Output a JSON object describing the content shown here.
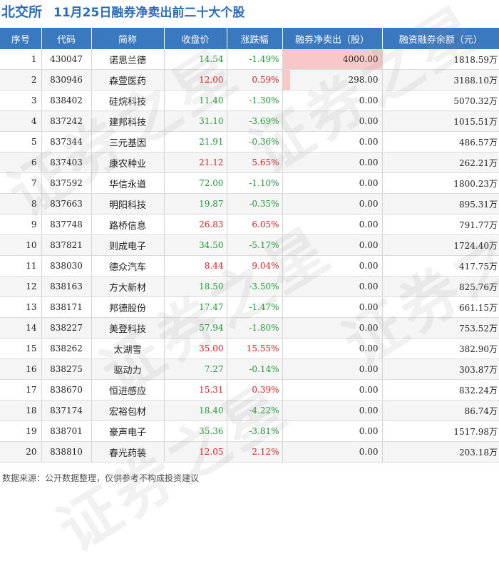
{
  "header": {
    "exchange": "北交所",
    "title": "11月25日融券净卖出前二十大个股"
  },
  "watermark_text": "证券之星",
  "source_note": "数据来源：公开数据整理，仅供参考不构成投资建议",
  "colors": {
    "header_bg": "#3a78c0",
    "title": "#2b6db5",
    "up": "#e02020",
    "down": "#1f9a33",
    "bar": "#f8c8c8"
  },
  "chart_data": {
    "type": "table",
    "columns": [
      "序号",
      "代码",
      "简称",
      "收盘价",
      "涨跌幅",
      "融券净卖出（股）",
      "融资融券余额（元）"
    ],
    "rows": [
      {
        "idx": "1",
        "code": "430047",
        "name": "诺思兰德",
        "close": "14.54",
        "chg": "-1.49%",
        "dir": "down",
        "net": "4000.00",
        "net_value": 4000,
        "bal": "1818.59万"
      },
      {
        "idx": "2",
        "code": "830946",
        "name": "森萱医药",
        "close": "12.00",
        "chg": "0.59%",
        "dir": "up",
        "net": "298.00",
        "net_value": 298,
        "bal": "3188.10万"
      },
      {
        "idx": "3",
        "code": "838402",
        "name": "硅烷科技",
        "close": "11.40",
        "chg": "-1.30%",
        "dir": "down",
        "net": "0.00",
        "net_value": 0,
        "bal": "5070.32万"
      },
      {
        "idx": "4",
        "code": "837242",
        "name": "建邦科技",
        "close": "31.10",
        "chg": "-3.69%",
        "dir": "down",
        "net": "0.00",
        "net_value": 0,
        "bal": "1015.51万"
      },
      {
        "idx": "5",
        "code": "837344",
        "name": "三元基因",
        "close": "21.91",
        "chg": "-0.36%",
        "dir": "down",
        "net": "0.00",
        "net_value": 0,
        "bal": "486.57万"
      },
      {
        "idx": "6",
        "code": "837403",
        "name": "康农种业",
        "close": "21.12",
        "chg": "5.65%",
        "dir": "up",
        "net": "0.00",
        "net_value": 0,
        "bal": "262.21万"
      },
      {
        "idx": "7",
        "code": "837592",
        "name": "华信永道",
        "close": "72.00",
        "chg": "-1.10%",
        "dir": "down",
        "net": "0.00",
        "net_value": 0,
        "bal": "1800.23万"
      },
      {
        "idx": "8",
        "code": "837663",
        "name": "明阳科技",
        "close": "19.87",
        "chg": "-0.35%",
        "dir": "down",
        "net": "0.00",
        "net_value": 0,
        "bal": "895.31万"
      },
      {
        "idx": "9",
        "code": "837748",
        "name": "路桥信息",
        "close": "26.83",
        "chg": "6.05%",
        "dir": "up",
        "net": "0.00",
        "net_value": 0,
        "bal": "791.77万"
      },
      {
        "idx": "10",
        "code": "837821",
        "name": "则成电子",
        "close": "34.50",
        "chg": "-5.17%",
        "dir": "down",
        "net": "0.00",
        "net_value": 0,
        "bal": "1724.40万"
      },
      {
        "idx": "11",
        "code": "838030",
        "name": "德众汽车",
        "close": "8.44",
        "chg": "9.04%",
        "dir": "up",
        "net": "0.00",
        "net_value": 0,
        "bal": "417.75万"
      },
      {
        "idx": "12",
        "code": "838163",
        "name": "方大新材",
        "close": "18.50",
        "chg": "-3.50%",
        "dir": "down",
        "net": "0.00",
        "net_value": 0,
        "bal": "825.76万"
      },
      {
        "idx": "13",
        "code": "838171",
        "name": "邦德股份",
        "close": "17.47",
        "chg": "-1.47%",
        "dir": "down",
        "net": "0.00",
        "net_value": 0,
        "bal": "661.15万"
      },
      {
        "idx": "14",
        "code": "838227",
        "name": "美登科技",
        "close": "57.94",
        "chg": "-1.80%",
        "dir": "down",
        "net": "0.00",
        "net_value": 0,
        "bal": "753.52万"
      },
      {
        "idx": "15",
        "code": "838262",
        "name": "太湖雪",
        "close": "35.00",
        "chg": "15.55%",
        "dir": "up",
        "net": "0.00",
        "net_value": 0,
        "bal": "382.90万"
      },
      {
        "idx": "16",
        "code": "838275",
        "name": "驱动力",
        "close": "7.27",
        "chg": "-0.14%",
        "dir": "down",
        "net": "0.00",
        "net_value": 0,
        "bal": "303.87万"
      },
      {
        "idx": "17",
        "code": "838670",
        "name": "恒进感应",
        "close": "15.31",
        "chg": "0.39%",
        "dir": "up",
        "net": "0.00",
        "net_value": 0,
        "bal": "832.24万"
      },
      {
        "idx": "18",
        "code": "837174",
        "name": "宏裕包材",
        "close": "18.40",
        "chg": "-4.22%",
        "dir": "down",
        "net": "0.00",
        "net_value": 0,
        "bal": "86.74万"
      },
      {
        "idx": "19",
        "code": "838701",
        "name": "豪声电子",
        "close": "35.36",
        "chg": "-3.81%",
        "dir": "down",
        "net": "0.00",
        "net_value": 0,
        "bal": "1517.98万"
      },
      {
        "idx": "20",
        "code": "838810",
        "name": "春光药装",
        "close": "12.05",
        "chg": "2.12%",
        "dir": "up",
        "net": "0.00",
        "net_value": 0,
        "bal": "203.18万"
      }
    ]
  }
}
